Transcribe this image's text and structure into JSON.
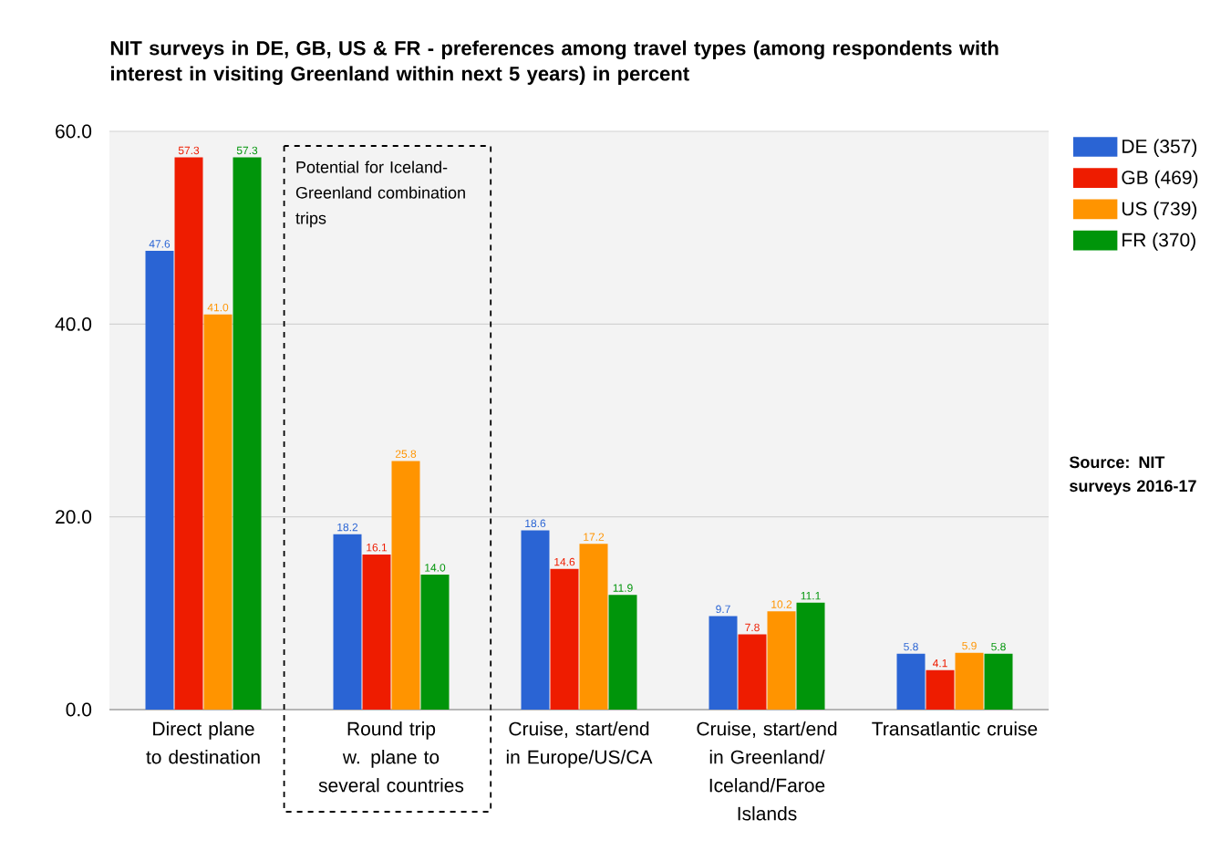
{
  "chart_data": {
    "type": "bar",
    "title": "NIT surveys in DE, GB, US & FR - preferences among travel types (among respondents with interest in visiting Greenland within next 5 years) in percent",
    "categories": [
      "Direct plane to destination",
      "Round trip w. plane to several countries",
      "Cruise, start/end in Europe/US/CA",
      "Cruise, start/end in Greenland/ Iceland/Faroe Islands",
      "Transatlantic cruise"
    ],
    "series": [
      {
        "name": "DE (357)",
        "color": "#2a64d4",
        "values": [
          47.6,
          18.2,
          18.6,
          9.7,
          5.8
        ],
        "value_labels": [
          "47.6",
          "18.2",
          "18.6",
          "9.7",
          "5.8"
        ]
      },
      {
        "name": "GB (469)",
        "color": "#ee1c00",
        "values": [
          57.3,
          16.1,
          14.6,
          7.8,
          4.1
        ],
        "value_labels": [
          "57.3",
          "16.1",
          "14.6",
          "7.8",
          "4.1"
        ]
      },
      {
        "name": "US (739)",
        "color": "#ff9400",
        "values": [
          41.0,
          25.8,
          17.2,
          10.2,
          5.9
        ],
        "value_labels": [
          "41.0",
          "25.8",
          "17.2",
          "10.2",
          "5.9"
        ]
      },
      {
        "name": "FR (370)",
        "color": "#00950a",
        "values": [
          57.3,
          14.0,
          11.9,
          11.1,
          5.8
        ],
        "value_labels": [
          "57.3",
          "14.0",
          "11.9",
          "11.1",
          "5.8"
        ]
      }
    ],
    "ylim": [
      0,
      60
    ],
    "yticks": [
      {
        "value": 0,
        "label": "0.0"
      },
      {
        "value": 20,
        "label": "20.0"
      },
      {
        "value": 40,
        "label": "40.0"
      },
      {
        "value": 60,
        "label": "60.0"
      }
    ],
    "grid": "y",
    "legend": "top right",
    "annotations": [
      "Potential for Iceland-Greenland combination trips",
      "Source: NIT surveys 2016-17"
    ]
  }
}
